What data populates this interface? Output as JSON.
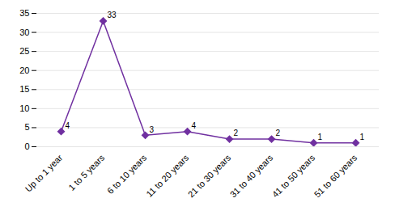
{
  "chart_data": {
    "type": "line",
    "categories": [
      "Up to 1 year",
      "1 to 5 years",
      "6 to 10 years",
      "11 to 20 years",
      "21 to 30 years",
      "31 to 40 years",
      "41 to 50 years",
      "51 to 60 years"
    ],
    "values": [
      4,
      33,
      3,
      4,
      2,
      2,
      1,
      1
    ],
    "color": "#7030A0",
    "marker": "diamond",
    "ylim": [
      0,
      35
    ],
    "yticks": [
      0,
      5,
      10,
      15,
      20,
      25,
      30,
      35
    ],
    "grid": true,
    "data_labels": true
  }
}
